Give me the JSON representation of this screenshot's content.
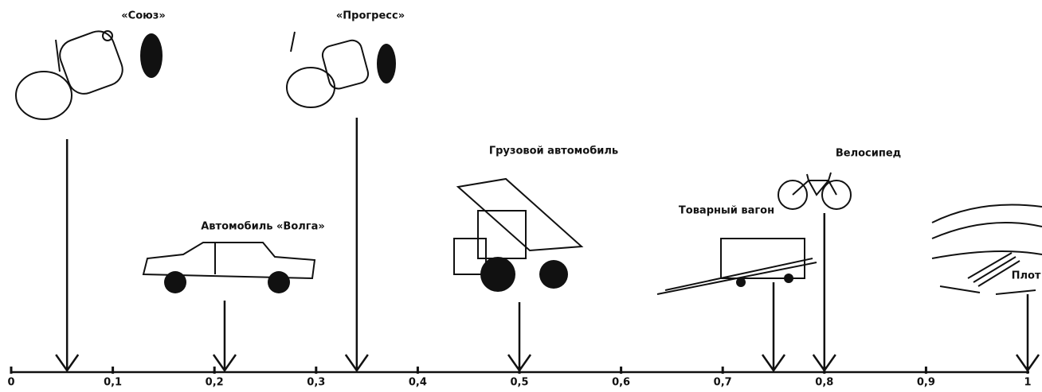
{
  "chart_data": {
    "type": "arrow",
    "categories": [
      "«Союз»",
      "Автомобиль «Волга»",
      "«Прогресс»",
      "Грузовой автомобиль",
      "Товарный вагон",
      "Велосипед",
      "Плот"
    ],
    "values": [
      0.055,
      0.21,
      0.34,
      0.5,
      0.75,
      0.8,
      1
    ],
    "xlim": [
      0,
      1
    ],
    "xticks": [
      0,
      {
        "value": 0.1,
        "label": "0,1"
      },
      {
        "value": 0.2,
        "label": "0,2"
      },
      {
        "value": 0.3,
        "label": "0,3"
      },
      {
        "value": 0.4,
        "label": "0,4"
      },
      {
        "value": 0.5,
        "label": "0,5"
      },
      {
        "value": 0.6,
        "label": "0,6"
      },
      {
        "value": 0.7,
        "label": "0,7"
      },
      {
        "value": 0.8,
        "label": "0,8"
      },
      {
        "value": 0.9,
        "label": "0,9"
      },
      1
    ],
    "color": "#111111"
  }
}
